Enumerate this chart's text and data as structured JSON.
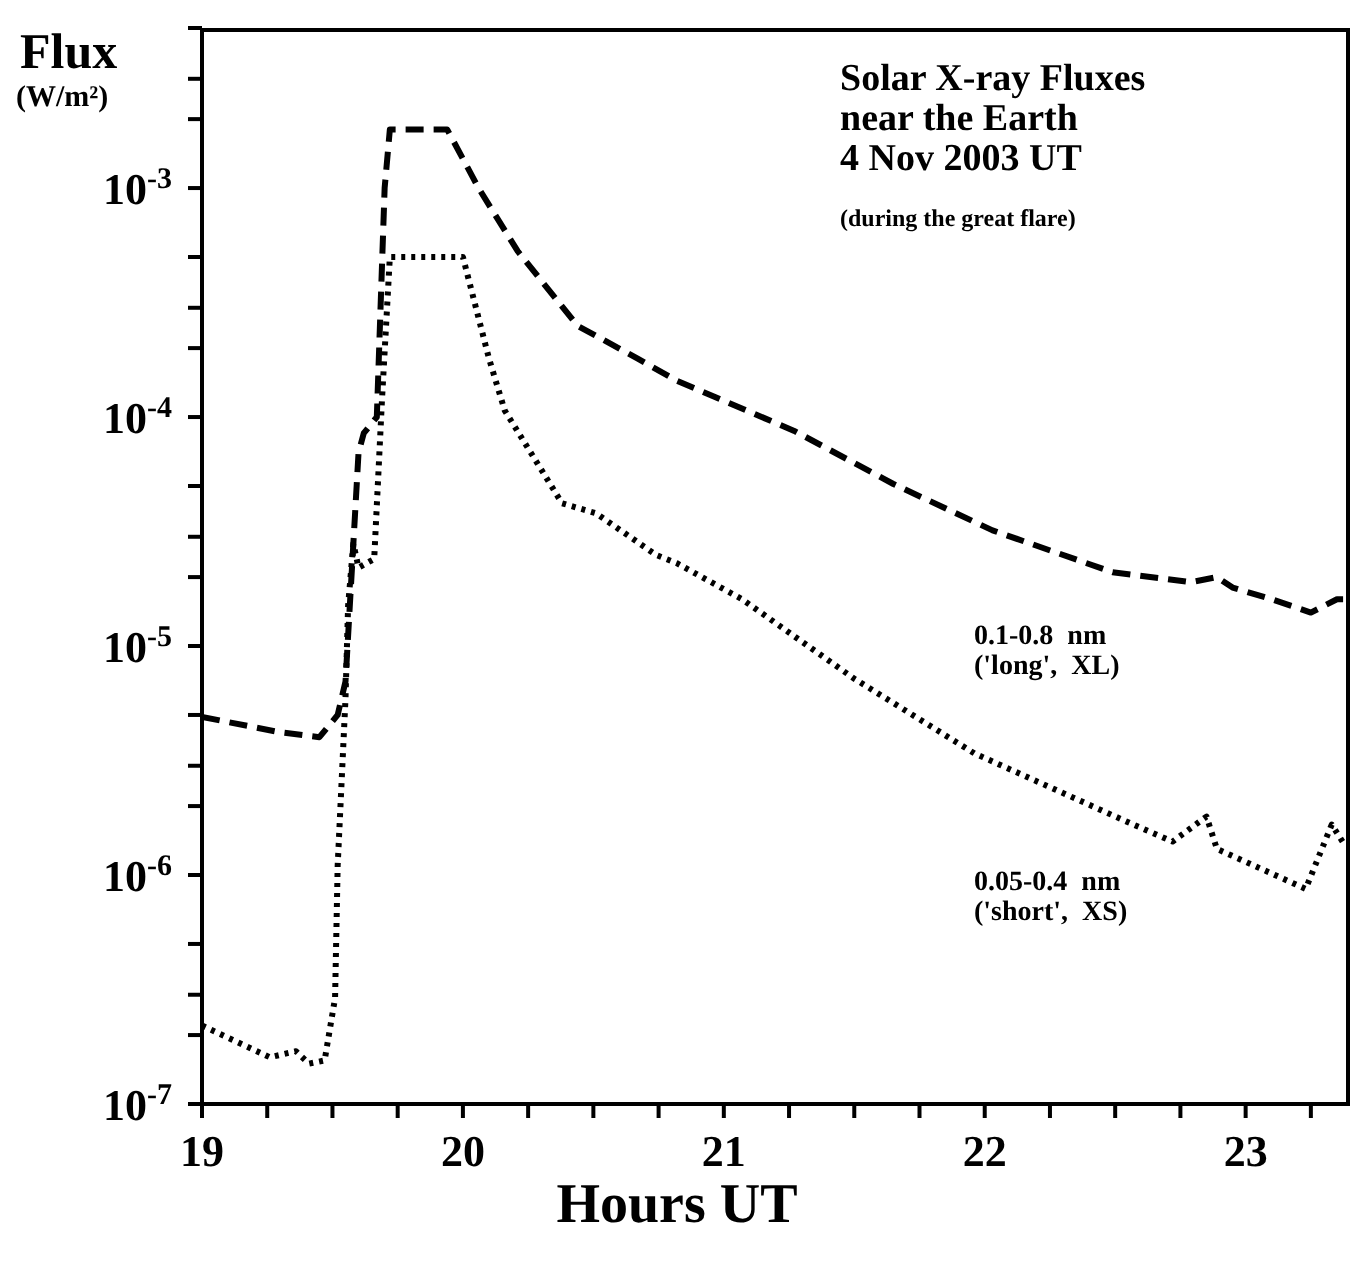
{
  "chart_data": {
    "type": "line",
    "title": "Solar X-ray Fluxes\nnear the Earth\n4 Nov 2003 UT",
    "subtitle": "(during the great flare)",
    "xlabel": "Hours UT",
    "ylabel": "Flux\n(W/m²)",
    "log": "y",
    "marker": "none",
    "xlim": [
      19,
      23.4
    ],
    "xticks": [
      19,
      {
        "value": 19.25,
        "label": null
      },
      {
        "value": 19.5,
        "label": null
      },
      {
        "value": 19.75,
        "label": null
      },
      20,
      {
        "value": 20.25,
        "label": null
      },
      {
        "value": 20.5,
        "label": null
      },
      {
        "value": 20.75,
        "label": null
      },
      21,
      {
        "value": 21.25,
        "label": null
      },
      {
        "value": 21.5,
        "label": null
      },
      {
        "value": 21.75,
        "label": null
      },
      22,
      {
        "value": 22.25,
        "label": null
      },
      {
        "value": 22.5,
        "label": null
      },
      {
        "value": 22.75,
        "label": null
      },
      23,
      {
        "value": 23.25,
        "label": null
      }
    ],
    "ylim": [
      1e-07,
      0.005
    ],
    "yticks": [
      {
        "value": 1e-07,
        "label": "10$^{-7}$"
      },
      {
        "value": 2e-07,
        "label": null
      },
      {
        "value": 3e-07,
        "label": null
      },
      {
        "value": 5e-07,
        "label": null
      },
      {
        "value": 1e-06,
        "label": "10$^{-6}$"
      },
      {
        "value": 2e-06,
        "label": null
      },
      {
        "value": 3e-06,
        "label": null
      },
      {
        "value": 5e-06,
        "label": null
      },
      {
        "value": 1e-05,
        "label": "10$^{-5}$"
      },
      {
        "value": 2e-05,
        "label": null
      },
      {
        "value": 3e-05,
        "label": null
      },
      {
        "value": 5e-05,
        "label": null
      },
      {
        "value": 0.0001,
        "label": "10$^{-4}$"
      },
      {
        "value": 0.0002,
        "label": null
      },
      {
        "value": 0.0003,
        "label": null
      },
      {
        "value": 0.0005,
        "label": null
      },
      {
        "value": 0.001,
        "label": "10$^{-3}$"
      },
      {
        "value": 0.002,
        "label": null
      },
      {
        "value": 0.003,
        "label": null
      },
      {
        "value": 0.005,
        "label": null
      }
    ],
    "series": [
      {
        "name": "0.1-0.8  nm\n('long',  XL)",
        "color": "#000000",
        "line_style": "dashed",
        "x": [
          19,
          19.3,
          19.45,
          19.52,
          19.55,
          19.6,
          19.62,
          19.67,
          19.7,
          19.72,
          19.94,
          20.06,
          20.21,
          20.44,
          20.67,
          20.82,
          21.27,
          21.65,
          22.03,
          22.49,
          22.79,
          22.89,
          22.95,
          23.1,
          23.25,
          23.35,
          23.4
        ],
        "values": [
          4.9e-06,
          4.2e-06,
          4e-06,
          5e-06,
          7e-06,
          7e-05,
          8.5e-05,
          0.0001,
          0.001,
          0.0018,
          0.0018,
          0.001,
          0.00053,
          0.00025,
          0.00018,
          0.000144,
          8.7e-05,
          5.1e-05,
          3.2e-05,
          2.1e-05,
          1.9e-05,
          2e-05,
          1.8e-05,
          1.6e-05,
          1.4e-05,
          1.6e-05,
          1.6e-05
        ]
      },
      {
        "name": "0.05-0.4  nm\n('short',  XS)",
        "color": "#000000",
        "line_style": "dotted",
        "x": [
          19,
          19.26,
          19.36,
          19.41,
          19.47,
          19.51,
          19.52,
          19.55,
          19.56,
          19.58,
          19.6,
          19.66,
          19.69,
          19.72,
          20,
          20.1,
          20.16,
          20.38,
          20.51,
          20.74,
          20.82,
          21.07,
          21.5,
          21.96,
          22.57,
          22.72,
          22.85,
          22.89,
          23.23,
          23.33,
          23.38
        ],
        "values": [
          2.2e-07,
          1.6e-07,
          1.7e-07,
          1.5e-07,
          1.55e-07,
          2.9e-07,
          1.1e-06,
          5.9e-06,
          1.5e-05,
          2.8e-05,
          2.2e-05,
          2.4e-05,
          0.00012,
          0.0005,
          0.0005,
          0.00018,
          0.000107,
          4.2e-05,
          3.8e-05,
          2.5e-05,
          2.3e-05,
          1.6e-05,
          7.2e-06,
          3.4e-06,
          1.66e-06,
          1.4e-06,
          1.8e-06,
          1.3e-06,
          8.7e-07,
          1.66e-06,
          1.35e-06
        ]
      }
    ]
  }
}
